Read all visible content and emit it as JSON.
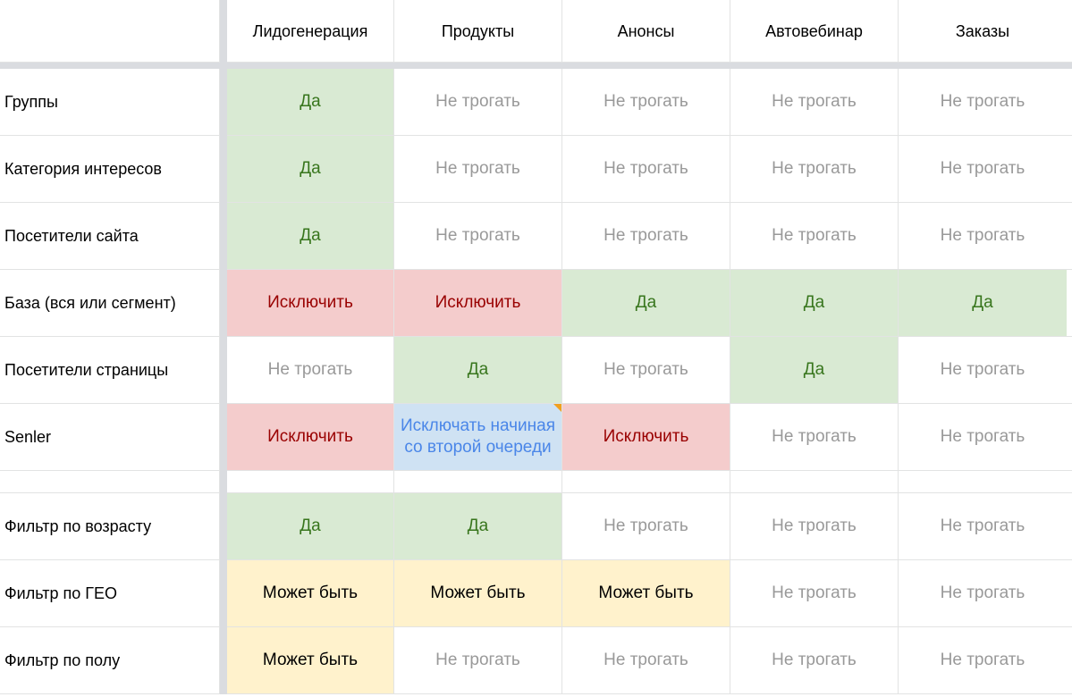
{
  "columns": [
    "Лидогенерация",
    "Продукты",
    "Анонсы",
    "Автовебинар",
    "Заказы"
  ],
  "rows": [
    {
      "label": "Группы",
      "cells": [
        {
          "text": "Да",
          "status": "yes"
        },
        {
          "text": "Не трогать",
          "status": "skip"
        },
        {
          "text": "Не трогать",
          "status": "skip"
        },
        {
          "text": "Не трогать",
          "status": "skip"
        },
        {
          "text": "Не трогать",
          "status": "skip"
        }
      ]
    },
    {
      "label": "Категория интересов",
      "cells": [
        {
          "text": "Да",
          "status": "yes"
        },
        {
          "text": "Не трогать",
          "status": "skip"
        },
        {
          "text": "Не трогать",
          "status": "skip"
        },
        {
          "text": "Не трогать",
          "status": "skip"
        },
        {
          "text": "Не трогать",
          "status": "skip"
        }
      ]
    },
    {
      "label": "Посетители сайта",
      "cells": [
        {
          "text": "Да",
          "status": "yes"
        },
        {
          "text": "Не трогать",
          "status": "skip"
        },
        {
          "text": "Не трогать",
          "status": "skip"
        },
        {
          "text": "Не трогать",
          "status": "skip"
        },
        {
          "text": "Не трогать",
          "status": "skip"
        }
      ]
    },
    {
      "label": "База (вся или сегмент)",
      "cells": [
        {
          "text": "Исключить",
          "status": "excl"
        },
        {
          "text": "Исключить",
          "status": "excl"
        },
        {
          "text": "Да",
          "status": "yes"
        },
        {
          "text": "Да",
          "status": "yes"
        },
        {
          "text": "Да",
          "status": "yes"
        }
      ]
    },
    {
      "label": "Посетители страницы",
      "cells": [
        {
          "text": "Не трогать",
          "status": "skip"
        },
        {
          "text": "Да",
          "status": "yes"
        },
        {
          "text": "Не трогать",
          "status": "skip"
        },
        {
          "text": "Да",
          "status": "yes"
        },
        {
          "text": "Не трогать",
          "status": "skip"
        }
      ]
    },
    {
      "label": "Senler",
      "cells": [
        {
          "text": "Исключить",
          "status": "excl"
        },
        {
          "text": "Исключать начиная со второй очереди",
          "status": "seq"
        },
        {
          "text": "Исключить",
          "status": "excl"
        },
        {
          "text": "Не трогать",
          "status": "skip"
        },
        {
          "text": "Не трогать",
          "status": "skip"
        }
      ]
    },
    {
      "label": "",
      "cells": [
        {
          "text": "",
          "status": "empty"
        },
        {
          "text": "",
          "status": "empty"
        },
        {
          "text": "",
          "status": "empty"
        },
        {
          "text": "",
          "status": "empty"
        },
        {
          "text": "",
          "status": "empty"
        }
      ]
    },
    {
      "label": "Фильтр по возрасту",
      "cells": [
        {
          "text": "Да",
          "status": "yes"
        },
        {
          "text": "Да",
          "status": "yes"
        },
        {
          "text": "Не трогать",
          "status": "skip"
        },
        {
          "text": "Не трогать",
          "status": "skip"
        },
        {
          "text": "Не трогать",
          "status": "skip"
        }
      ]
    },
    {
      "label": "Фильтр по ГЕО",
      "cells": [
        {
          "text": "Может быть",
          "status": "maybe"
        },
        {
          "text": "Может быть",
          "status": "maybe"
        },
        {
          "text": "Может быть",
          "status": "maybe"
        },
        {
          "text": "Не трогать",
          "status": "skip"
        },
        {
          "text": "Не трогать",
          "status": "skip"
        }
      ]
    },
    {
      "label": "Фильтр по полу",
      "cells": [
        {
          "text": "Может быть",
          "status": "maybe"
        },
        {
          "text": "Не трогать",
          "status": "skip"
        },
        {
          "text": "Не трогать",
          "status": "skip"
        },
        {
          "text": "Не трогать",
          "status": "skip"
        },
        {
          "text": "Не трогать",
          "status": "skip"
        }
      ]
    }
  ],
  "status_colors": {
    "yes": "#d9ead3",
    "excl": "#f4cccc",
    "maybe": "#fff2cc",
    "skip": "#ffffff",
    "seq": "#cfe2f3"
  },
  "notes": {
    "row": 5,
    "col": 1,
    "flag_color": "#f1a01f"
  }
}
